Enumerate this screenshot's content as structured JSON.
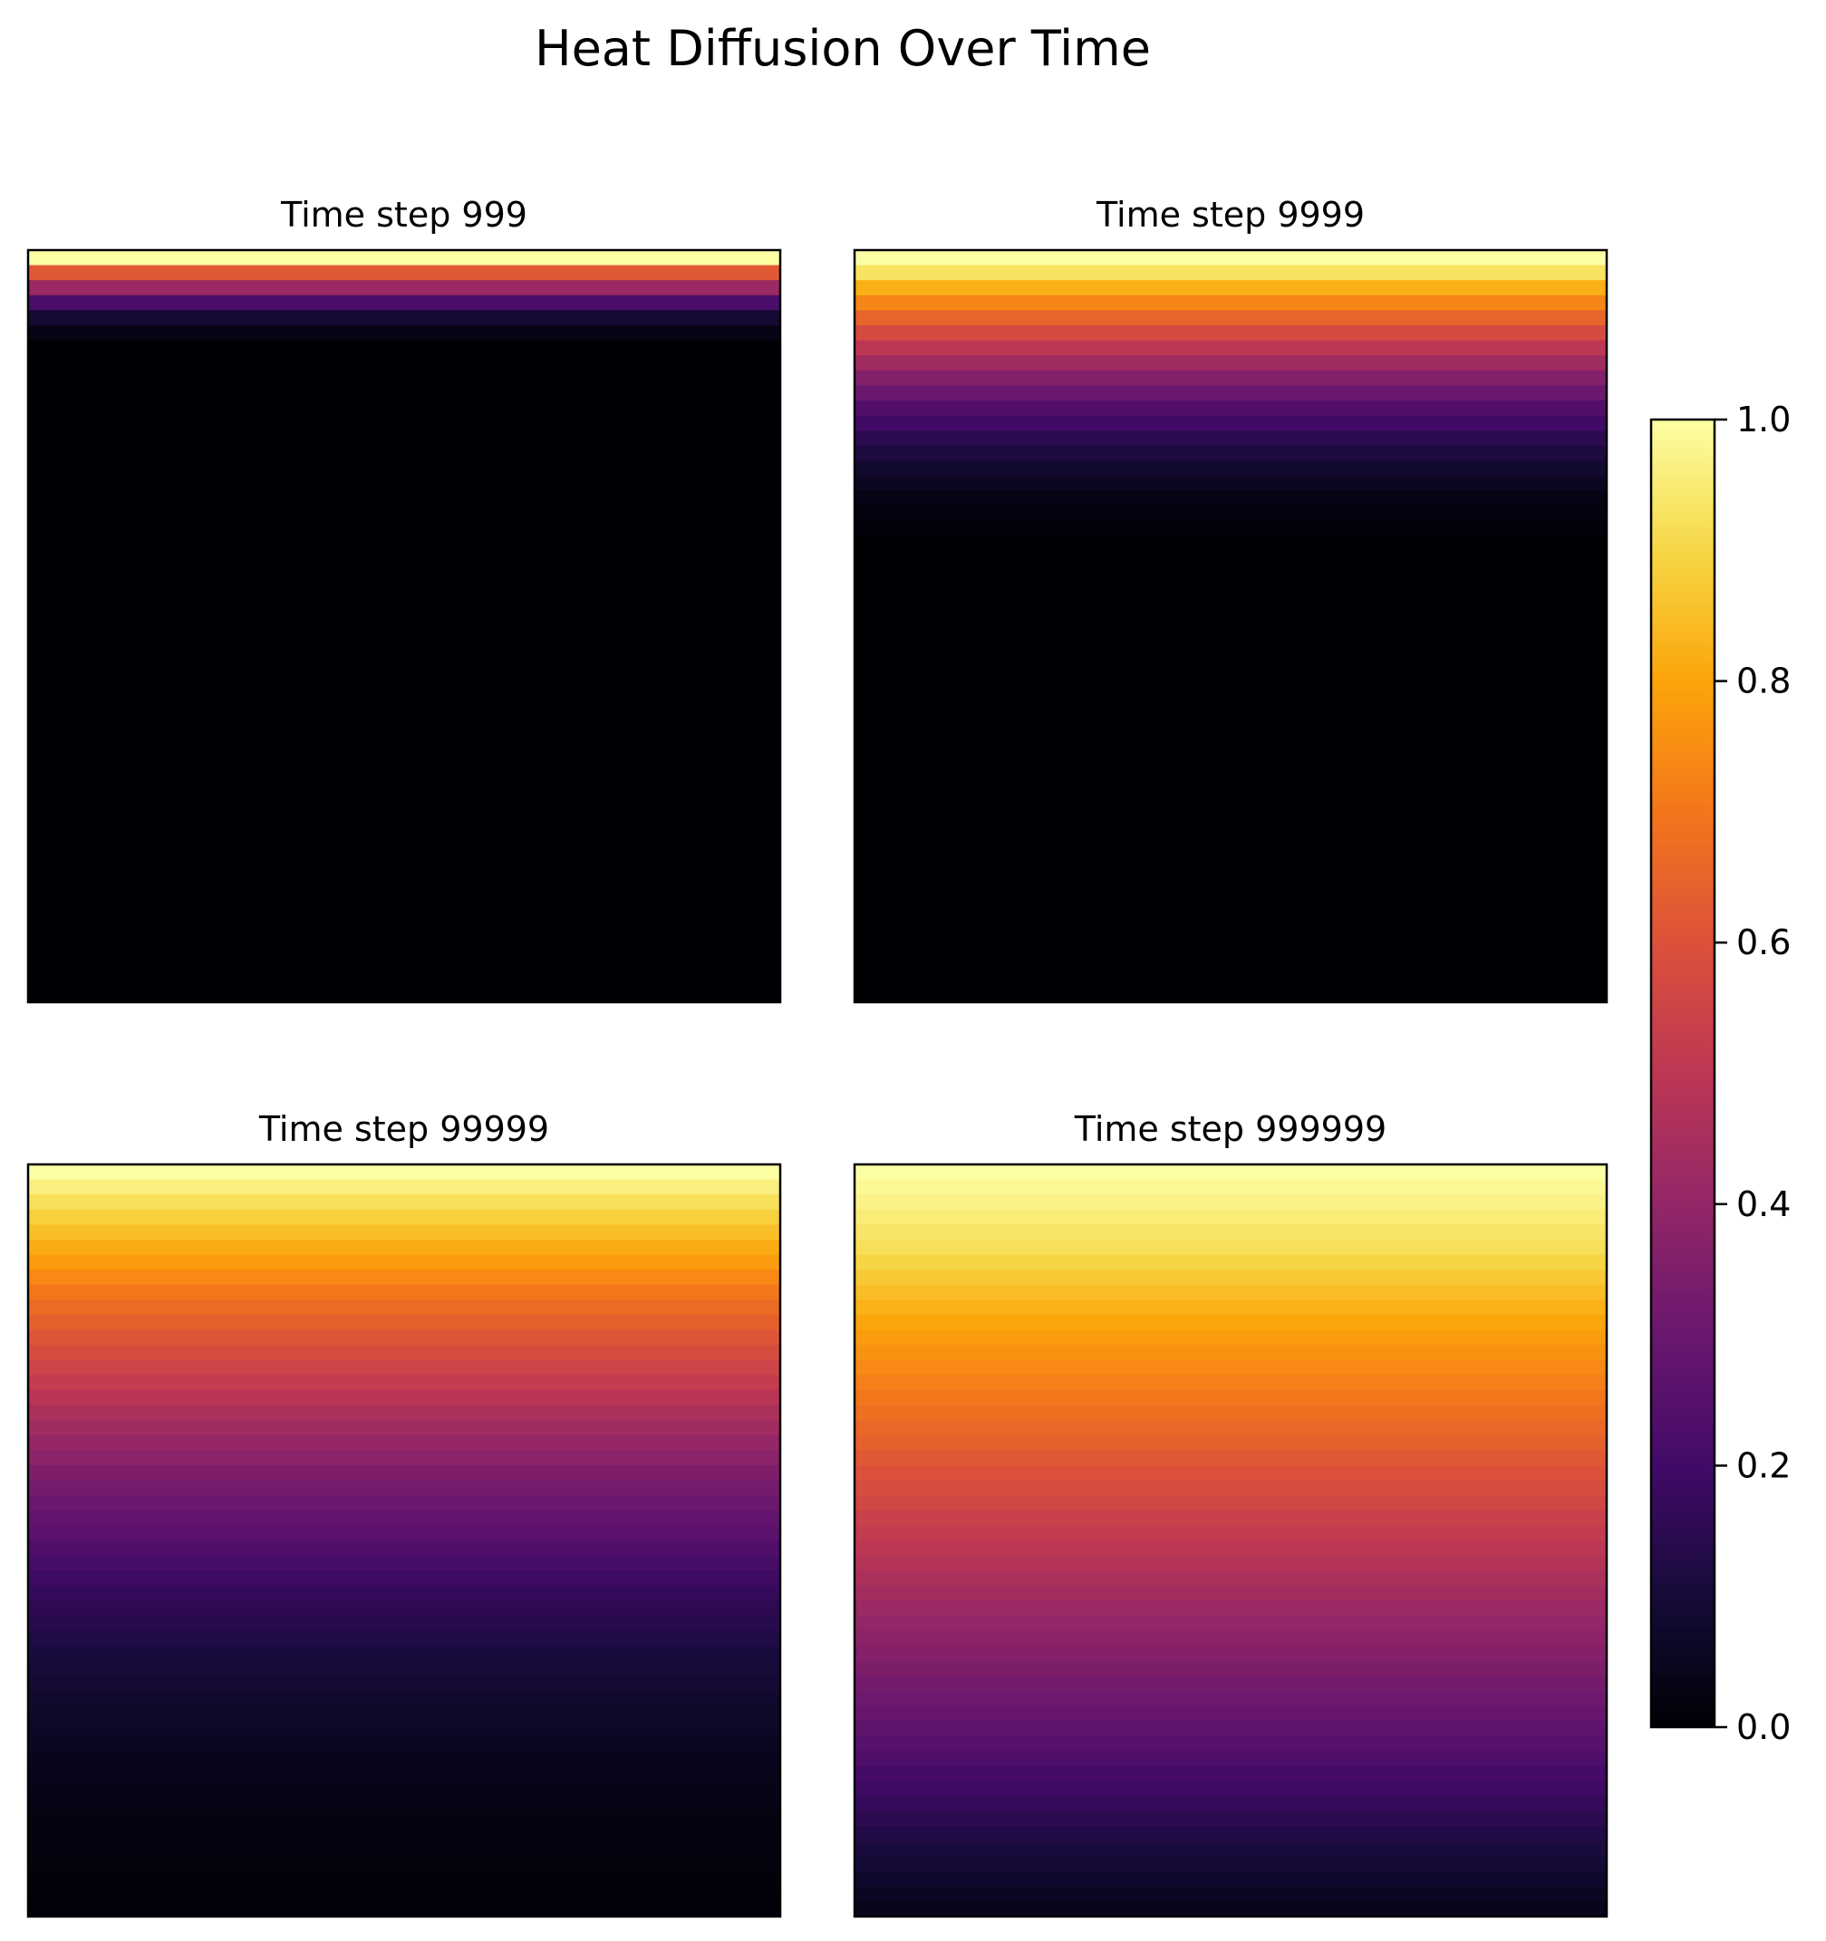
{
  "figure": {
    "title": "Heat Diffusion Over Time"
  },
  "chart_data": {
    "type": "heatmap",
    "title": "Heat Diffusion Over Time",
    "colormap": "inferno",
    "grid_rows": 50,
    "panels": [
      {
        "title": "Time step 999",
        "profile": [
          [
            0,
            1.0
          ],
          [
            1,
            0.62
          ],
          [
            2,
            0.42
          ],
          [
            3,
            0.22
          ],
          [
            4,
            0.09
          ],
          [
            5,
            0.03
          ],
          [
            6,
            0.0
          ],
          [
            49,
            0.0
          ]
        ]
      },
      {
        "title": "Time step 9999",
        "profile": [
          [
            0,
            1.0
          ],
          [
            1,
            0.93
          ],
          [
            2,
            0.82
          ],
          [
            4,
            0.65
          ],
          [
            6,
            0.5
          ],
          [
            8,
            0.36
          ],
          [
            10,
            0.24
          ],
          [
            12,
            0.15
          ],
          [
            14,
            0.08
          ],
          [
            16,
            0.03
          ],
          [
            19,
            0.0
          ],
          [
            49,
            0.0
          ]
        ]
      },
      {
        "title": "Time step 99999",
        "profile": [
          [
            0,
            1.0
          ],
          [
            2,
            0.92
          ],
          [
            4,
            0.85
          ],
          [
            6,
            0.78
          ],
          [
            8,
            0.7
          ],
          [
            12,
            0.58
          ],
          [
            16,
            0.46
          ],
          [
            20,
            0.35
          ],
          [
            24,
            0.26
          ],
          [
            28,
            0.17
          ],
          [
            32,
            0.11
          ],
          [
            36,
            0.07
          ],
          [
            40,
            0.04
          ],
          [
            44,
            0.02
          ],
          [
            49,
            0.01
          ]
        ]
      },
      {
        "title": "Time step 999999",
        "profile": [
          [
            0,
            1.0
          ],
          [
            5,
            0.92
          ],
          [
            10,
            0.8
          ],
          [
            15,
            0.7
          ],
          [
            20,
            0.6
          ],
          [
            25,
            0.5
          ],
          [
            30,
            0.4
          ],
          [
            35,
            0.31
          ],
          [
            40,
            0.21
          ],
          [
            45,
            0.11
          ],
          [
            49,
            0.04
          ]
        ]
      }
    ],
    "colorbar": {
      "range": [
        0.0,
        1.0
      ],
      "ticks": [
        "0.0",
        "0.2",
        "0.4",
        "0.6",
        "0.8",
        "1.0"
      ]
    }
  }
}
